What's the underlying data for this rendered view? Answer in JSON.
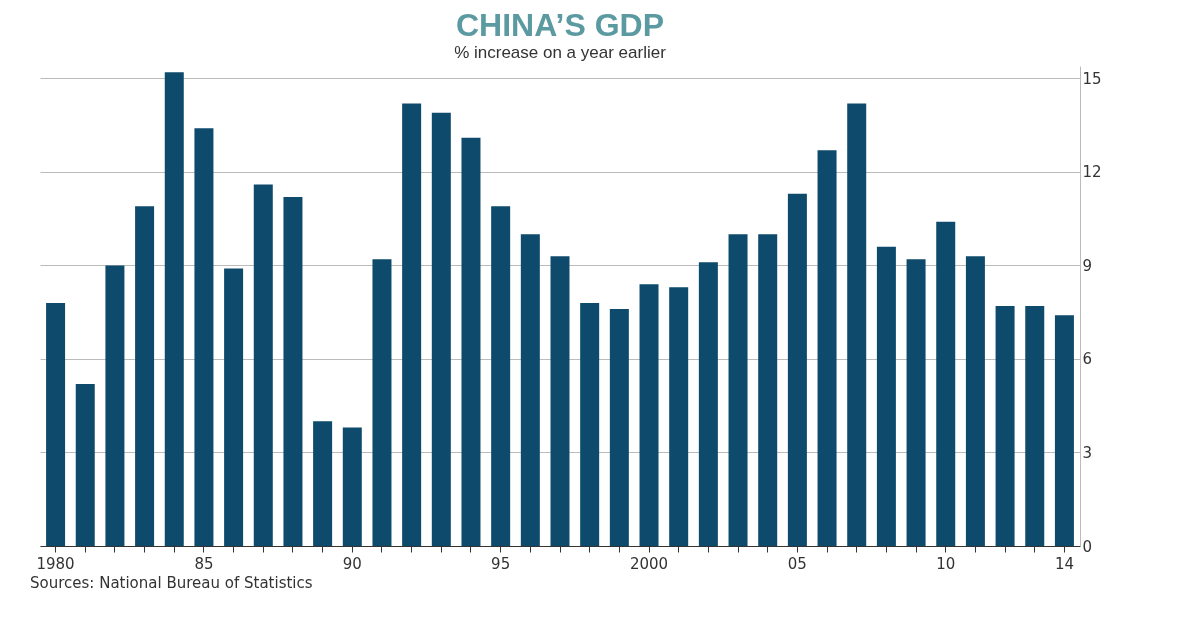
{
  "chart_data": {
    "type": "bar",
    "title": "CHINA’S GDP",
    "subtitle": "% increase on a year earlier",
    "categories": [
      "1980",
      null,
      null,
      null,
      null,
      "85",
      null,
      null,
      null,
      null,
      "90",
      null,
      null,
      null,
      null,
      "95",
      null,
      null,
      null,
      null,
      "2000",
      null,
      null,
      null,
      null,
      "05",
      null,
      null,
      null,
      null,
      "10",
      null,
      null,
      null,
      "14"
    ],
    "values": [
      7.8,
      5.2,
      9.0,
      10.9,
      15.2,
      13.4,
      8.9,
      11.6,
      11.2,
      4.0,
      3.8,
      9.2,
      14.2,
      13.9,
      13.1,
      10.9,
      10.0,
      9.3,
      7.8,
      7.6,
      8.4,
      8.3,
      9.1,
      10.0,
      10.0,
      11.3,
      12.7,
      14.2,
      9.6,
      9.2,
      10.4,
      9.3,
      7.7,
      7.7,
      7.4
    ],
    "color": "#0d4a6b",
    "ylim": [
      0,
      15.4
    ],
    "yticks": [
      0,
      3,
      6,
      9,
      12,
      15
    ],
    "grid": "y",
    "annotations": [
      "Sources: National Bureau of Statistics"
    ]
  }
}
